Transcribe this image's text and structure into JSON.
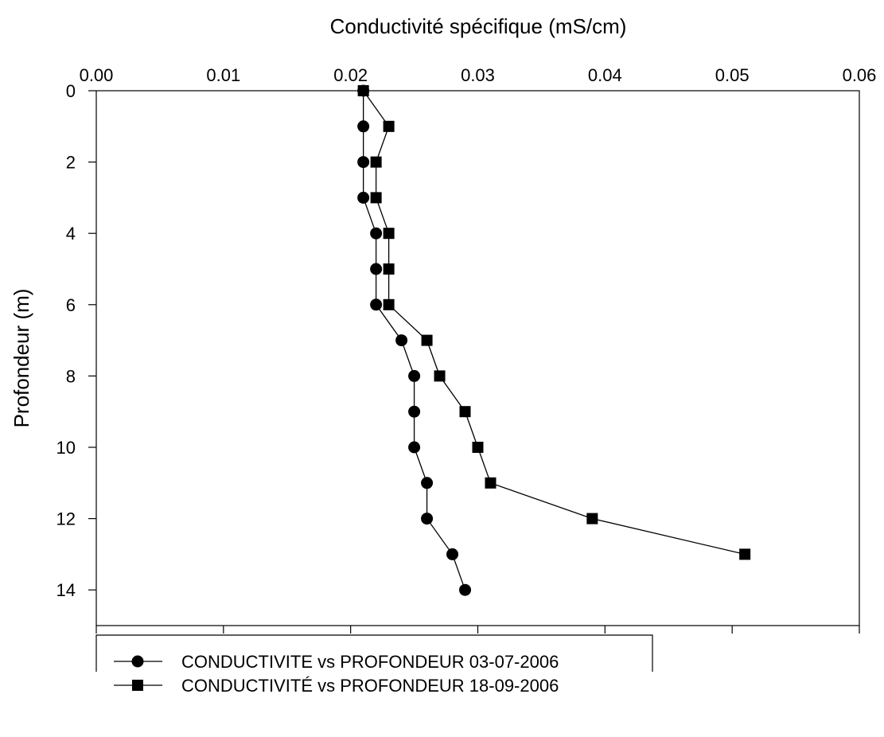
{
  "chart_data": {
    "type": "line",
    "orientation": "depth-profile",
    "xlabel": "Conductivité spécifique (mS/cm)",
    "ylabel": "Profondeur (m)",
    "xlim": [
      0,
      0.06
    ],
    "ylim": [
      0,
      15
    ],
    "y_inverted": true,
    "x_axis_position": "top",
    "x_ticks": [
      "0.00",
      "0.01",
      "0.02",
      "0.03",
      "0.04",
      "0.05",
      "0.06"
    ],
    "y_ticks": [
      "0",
      "2",
      "4",
      "6",
      "8",
      "10",
      "12",
      "14"
    ],
    "grid": false,
    "legend_position": "bottom-left, below plot",
    "series": [
      {
        "name": "CONDUCTIVITE vs PROFONDEUR 03-07-2006",
        "marker": "circle",
        "color": "#000000",
        "points": [
          {
            "x": 0.021,
            "y": 0
          },
          {
            "x": 0.021,
            "y": 1
          },
          {
            "x": 0.021,
            "y": 2
          },
          {
            "x": 0.021,
            "y": 3
          },
          {
            "x": 0.022,
            "y": 4
          },
          {
            "x": 0.022,
            "y": 5
          },
          {
            "x": 0.022,
            "y": 6
          },
          {
            "x": 0.024,
            "y": 7
          },
          {
            "x": 0.025,
            "y": 8
          },
          {
            "x": 0.025,
            "y": 9
          },
          {
            "x": 0.025,
            "y": 10
          },
          {
            "x": 0.026,
            "y": 11
          },
          {
            "x": 0.026,
            "y": 12
          },
          {
            "x": 0.028,
            "y": 13
          },
          {
            "x": 0.029,
            "y": 14
          }
        ]
      },
      {
        "name": "CONDUCTIVITÉ vs PROFONDEUR 18-09-2006",
        "marker": "square",
        "color": "#000000",
        "points": [
          {
            "x": 0.021,
            "y": 0
          },
          {
            "x": 0.023,
            "y": 1
          },
          {
            "x": 0.022,
            "y": 2
          },
          {
            "x": 0.022,
            "y": 3
          },
          {
            "x": 0.023,
            "y": 4
          },
          {
            "x": 0.023,
            "y": 5
          },
          {
            "x": 0.023,
            "y": 6
          },
          {
            "x": 0.026,
            "y": 7
          },
          {
            "x": 0.027,
            "y": 8
          },
          {
            "x": 0.029,
            "y": 9
          },
          {
            "x": 0.03,
            "y": 10
          },
          {
            "x": 0.031,
            "y": 11
          },
          {
            "x": 0.039,
            "y": 12
          },
          {
            "x": 0.051,
            "y": 13
          }
        ]
      }
    ]
  }
}
